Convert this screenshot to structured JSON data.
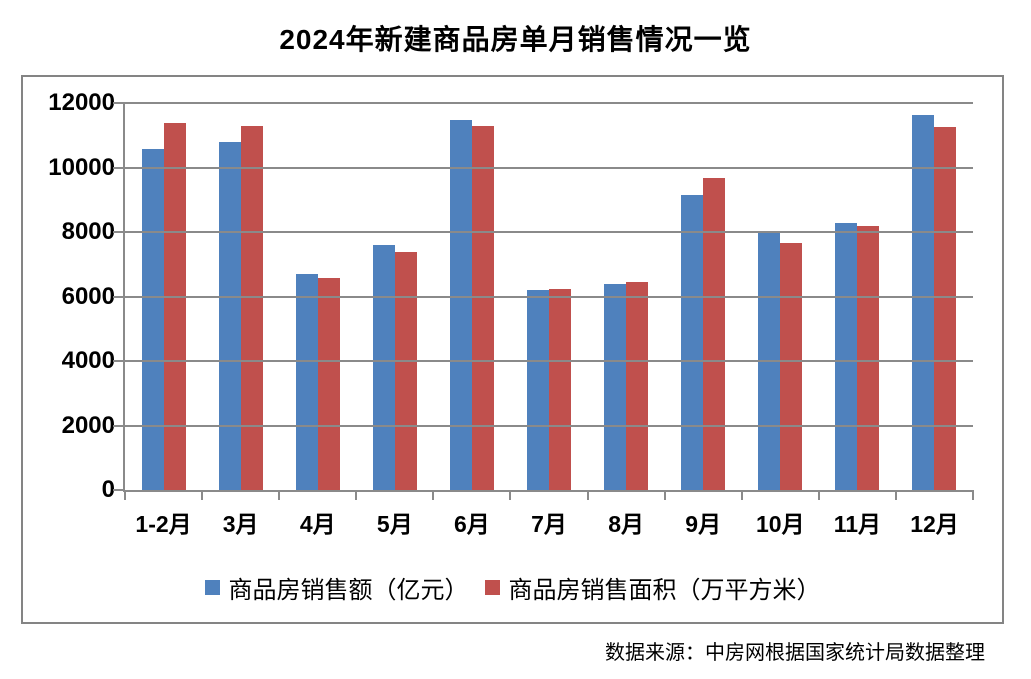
{
  "title": "2024年新建商品房单月销售情况一览",
  "source": "数据来源：中房网根据国家统计局数据整理",
  "colors": {
    "series_sales_amount": "#4F81BD",
    "series_sales_area": "#C0504D",
    "gridline": "#8A8A8A",
    "axis": "#8A8A8A",
    "chart_border": "#848484",
    "text": "#000000",
    "background": "#FFFFFF"
  },
  "chart_data": {
    "type": "bar",
    "title": "2024年新建商品房单月销售情况一览",
    "categories": [
      "1-2月",
      "3月",
      "4月",
      "5月",
      "6月",
      "7月",
      "8月",
      "9月",
      "10月",
      "11月",
      "12月"
    ],
    "series": [
      {
        "name": "商品房销售额（亿元）",
        "color": "#4F81BD",
        "values": [
          10566,
          10789,
          6712,
          7598,
          11468,
          6197,
          6393,
          9157,
          7975,
          8270,
          11625
        ]
      },
      {
        "name": "商品房销售面积（万平方米）",
        "color": "#C0504D",
        "values": [
          11369,
          11299,
          6584,
          7390,
          11274,
          6233,
          6453,
          9682,
          7646,
          8188,
          11267
        ]
      }
    ],
    "xlabel": "",
    "ylabel": "",
    "ylim": [
      0,
      12000
    ],
    "ytick_step": 2000,
    "yticks": [
      0,
      2000,
      4000,
      6000,
      8000,
      10000,
      12000
    ],
    "grid": true,
    "legend_position": "bottom"
  }
}
